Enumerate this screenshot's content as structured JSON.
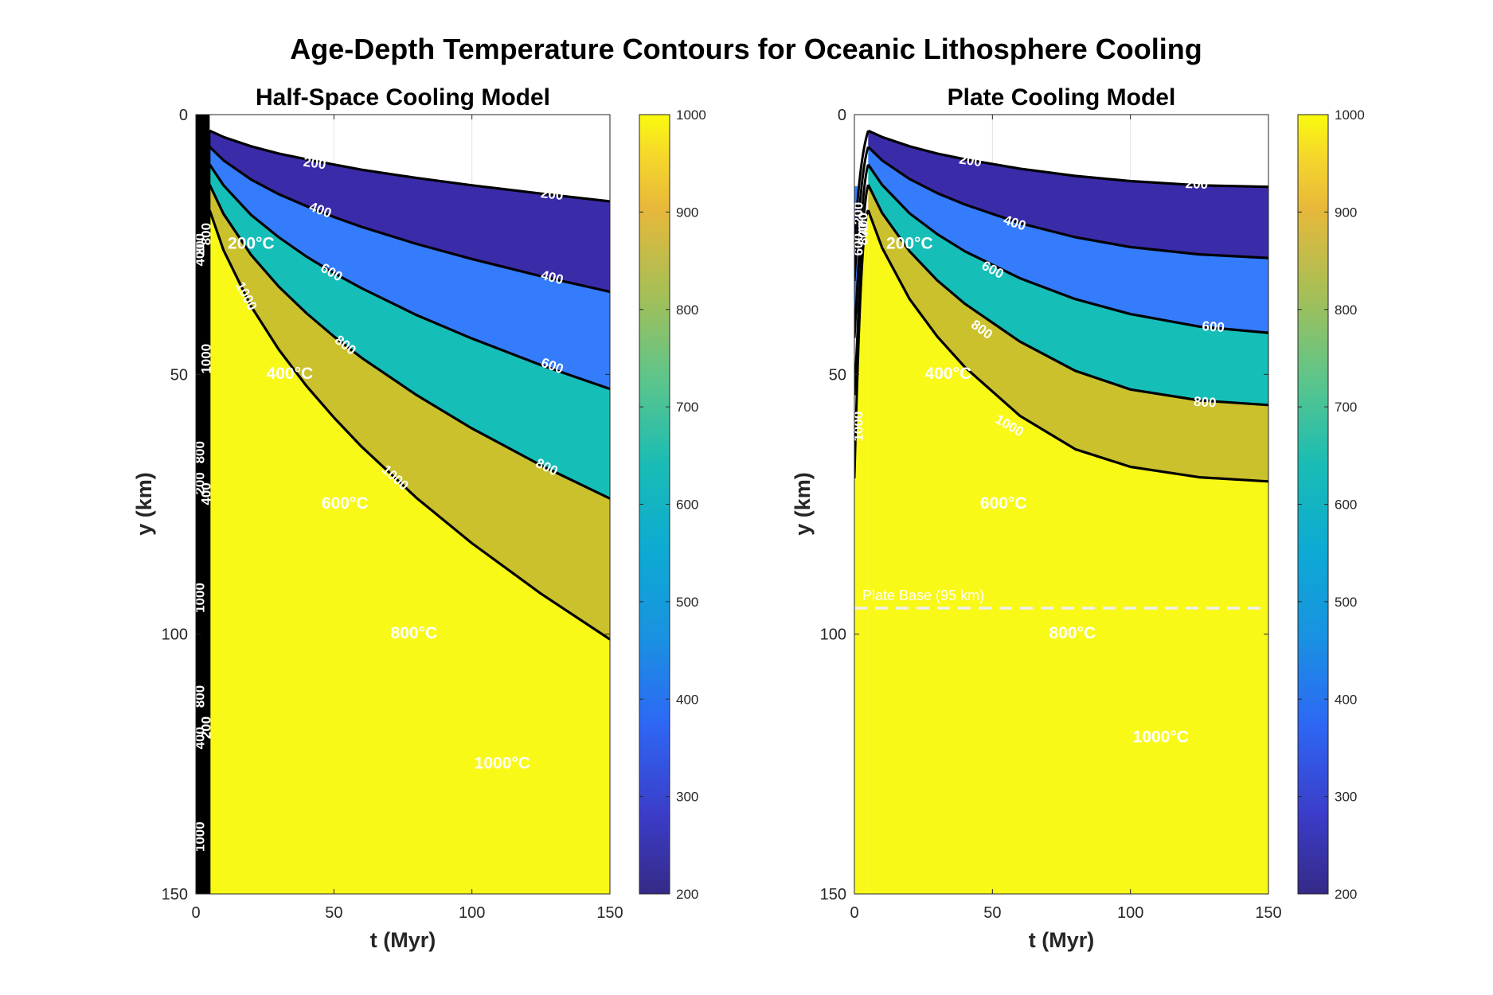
{
  "figure": {
    "title": "Age-Depth Temperature Contours for Oceanic Lithosphere Cooling"
  },
  "chart_data": [
    {
      "type": "contourf",
      "title": "Half-Space Cooling Model",
      "xlabel": "t (Myr)",
      "ylabel": "y (km)",
      "xlim": [
        0,
        150
      ],
      "ylim": [
        0,
        150
      ],
      "y_reversed": true,
      "xticks": [
        "0",
        "50",
        "100",
        "150"
      ],
      "yticks": [
        "0",
        "50",
        "100",
        "150"
      ],
      "grid": true,
      "levels": [
        200,
        400,
        600,
        800,
        1000
      ],
      "band_colors": [
        "#3a2ba9",
        "#347cfc",
        "#16beb8",
        "#cbc12c",
        "#f9f918"
      ],
      "contours": [
        {
          "level": 200,
          "label": "200",
          "t": [
            5,
            10,
            20,
            30,
            40,
            50,
            60,
            80,
            100,
            125,
            150
          ],
          "y": [
            3.1,
            4.3,
            6.1,
            7.5,
            8.6,
            9.6,
            10.6,
            12.2,
            13.6,
            15.2,
            16.7
          ]
        },
        {
          "level": 400,
          "label": "400",
          "t": [
            5,
            10,
            20,
            30,
            40,
            50,
            60,
            80,
            100,
            125,
            150
          ],
          "y": [
            6.2,
            8.8,
            12.5,
            15.3,
            17.6,
            19.7,
            21.6,
            24.9,
            27.8,
            31.1,
            34.1
          ]
        },
        {
          "level": 600,
          "label": "600",
          "t": [
            5,
            10,
            20,
            30,
            40,
            50,
            60,
            80,
            100,
            125,
            150
          ],
          "y": [
            9.6,
            13.6,
            19.3,
            23.6,
            27.3,
            30.5,
            33.4,
            38.6,
            43.1,
            48.2,
            52.8
          ]
        },
        {
          "level": 800,
          "label": "800",
          "t": [
            5,
            10,
            20,
            30,
            40,
            50,
            60,
            80,
            100,
            125,
            150
          ],
          "y": [
            13.5,
            19.1,
            27.0,
            33.1,
            38.2,
            42.7,
            46.8,
            54.0,
            60.4,
            67.5,
            73.9
          ]
        },
        {
          "level": 1000,
          "label": "1000",
          "t": [
            5,
            10,
            20,
            30,
            40,
            50,
            60,
            80,
            100,
            125,
            150
          ],
          "y": [
            18.4,
            26.1,
            36.9,
            45.2,
            52.2,
            58.3,
            63.9,
            73.8,
            82.5,
            92.2,
            101.0
          ]
        }
      ],
      "contour_labels": [
        {
          "text": "200",
          "t": 43,
          "y": 9.5,
          "angle": 8
        },
        {
          "text": "200",
          "t": 129,
          "y": 15.5,
          "angle": 6
        },
        {
          "text": "400",
          "t": 45,
          "y": 18.5,
          "angle": 20
        },
        {
          "text": "400",
          "t": 129,
          "y": 31.5,
          "angle": 14
        },
        {
          "text": "600",
          "t": 49,
          "y": 30.5,
          "angle": 30
        },
        {
          "text": "600",
          "t": 129,
          "y": 48.5,
          "angle": 20
        },
        {
          "text": "800",
          "t": 54,
          "y": 44.5,
          "angle": 38
        },
        {
          "text": "800",
          "t": 127,
          "y": 68,
          "angle": 26
        },
        {
          "text": "1000",
          "t": 18,
          "y": 35,
          "angle": 62
        },
        {
          "text": "1000",
          "t": 72,
          "y": 70,
          "angle": 42
        }
      ],
      "edge_labels": [
        {
          "text": "800",
          "y": 23,
          "angle": -90
        },
        {
          "text": "200",
          "y": 25,
          "angle": -90
        },
        {
          "text": "400",
          "y": 27,
          "angle": -90
        },
        {
          "text": "1000",
          "y": 47,
          "angle": -90
        },
        {
          "text": "800",
          "y": 65,
          "angle": -90
        },
        {
          "text": "200",
          "y": 71,
          "angle": -90
        },
        {
          "text": "400",
          "y": 73,
          "angle": -90
        },
        {
          "text": "1000",
          "y": 93,
          "angle": -90
        },
        {
          "text": "800",
          "y": 112,
          "angle": -90
        },
        {
          "text": "200",
          "y": 118,
          "angle": -90
        },
        {
          "text": "400",
          "y": 120,
          "angle": -90
        },
        {
          "text": "1000",
          "y": 139,
          "angle": -90
        }
      ],
      "temperature_annotations": [
        {
          "text": "200°C",
          "t": 20,
          "y": 25
        },
        {
          "text": "400°C",
          "t": 34,
          "y": 50
        },
        {
          "text": "600°C",
          "t": 54,
          "y": 75
        },
        {
          "text": "800°C",
          "t": 79,
          "y": 100
        },
        {
          "text": "1000°C",
          "t": 111,
          "y": 125
        }
      ],
      "colorbar": {
        "min": 200,
        "max": 1000,
        "ticks": [
          "200",
          "300",
          "400",
          "500",
          "600",
          "700",
          "800",
          "900",
          "1000"
        ]
      }
    },
    {
      "type": "contourf",
      "title": "Plate Cooling Model",
      "xlabel": "t (Myr)",
      "ylabel": "y (km)",
      "xlim": [
        0,
        150
      ],
      "ylim": [
        0,
        150
      ],
      "y_reversed": true,
      "xticks": [
        "0",
        "50",
        "100",
        "150"
      ],
      "yticks": [
        "0",
        "50",
        "100",
        "150"
      ],
      "grid": true,
      "levels": [
        200,
        400,
        600,
        800,
        1000
      ],
      "band_colors": [
        "#3a2ba9",
        "#347cfc",
        "#16beb8",
        "#cbc12c",
        "#f9f918"
      ],
      "contours": [
        {
          "level": 200,
          "label": "200",
          "t": [
            5,
            10,
            20,
            30,
            40,
            60,
            80,
            100,
            125,
            150
          ],
          "y": [
            3.1,
            4.3,
            6.1,
            7.5,
            8.6,
            10.4,
            11.8,
            12.8,
            13.6,
            13.9
          ]
        },
        {
          "level": 400,
          "label": "400",
          "t": [
            5,
            10,
            20,
            30,
            40,
            60,
            80,
            100,
            125,
            150
          ],
          "y": [
            6.2,
            8.8,
            12.4,
            15.1,
            17.3,
            20.9,
            23.6,
            25.5,
            26.9,
            27.6
          ]
        },
        {
          "level": 600,
          "label": "600",
          "t": [
            5,
            10,
            20,
            30,
            40,
            60,
            80,
            100,
            125,
            150
          ],
          "y": [
            9.6,
            13.5,
            19.0,
            23.0,
            26.3,
            31.5,
            35.5,
            38.4,
            40.8,
            42.0
          ]
        },
        {
          "level": 800,
          "label": "800",
          "t": [
            5,
            10,
            20,
            30,
            40,
            60,
            80,
            100,
            125,
            150
          ],
          "y": [
            13.5,
            18.9,
            26.3,
            31.9,
            36.4,
            43.7,
            49.3,
            52.9,
            55.0,
            55.9
          ]
        },
        {
          "level": 1000,
          "label": "1000",
          "t": [
            5,
            10,
            20,
            30,
            40,
            60,
            80,
            100,
            125,
            150
          ],
          "y": [
            18.4,
            25.6,
            35.5,
            42.7,
            48.6,
            58.0,
            64.4,
            67.8,
            69.8,
            70.6
          ]
        }
      ],
      "contour_labels": [
        {
          "text": "200",
          "t": 42,
          "y": 9,
          "angle": 8
        },
        {
          "text": "200",
          "t": 124,
          "y": 13.5,
          "angle": 2
        },
        {
          "text": "400",
          "t": 58,
          "y": 21,
          "angle": 18
        },
        {
          "text": "600",
          "t": 50,
          "y": 30,
          "angle": 28
        },
        {
          "text": "600",
          "t": 130,
          "y": 41,
          "angle": 4
        },
        {
          "text": "800",
          "t": 46,
          "y": 41.5,
          "angle": 36
        },
        {
          "text": "800",
          "t": 127,
          "y": 55.5,
          "angle": 4
        },
        {
          "text": "1000",
          "t": 56,
          "y": 60,
          "angle": 30
        }
      ],
      "edge_labels": [
        {
          "text": "200",
          "y": 19,
          "angle": -90
        },
        {
          "text": "400",
          "y": 21,
          "angle": -90
        },
        {
          "text": "600",
          "y": 25,
          "angle": -90
        },
        {
          "text": "800",
          "y": 23,
          "angle": -90
        },
        {
          "text": "1000",
          "y": 60,
          "angle": -90
        }
      ],
      "temperature_annotations": [
        {
          "text": "200°C",
          "t": 20,
          "y": 25
        },
        {
          "text": "400°C",
          "t": 34,
          "y": 50
        },
        {
          "text": "600°C",
          "t": 54,
          "y": 75
        },
        {
          "text": "800°C",
          "t": 79,
          "y": 100
        },
        {
          "text": "1000°C",
          "t": 111,
          "y": 120
        }
      ],
      "plate_base": {
        "y": 95,
        "label": "Plate Base (95 km)"
      },
      "colorbar": {
        "min": 200,
        "max": 1000,
        "ticks": [
          "200",
          "300",
          "400",
          "500",
          "600",
          "700",
          "800",
          "900",
          "1000"
        ]
      }
    }
  ]
}
